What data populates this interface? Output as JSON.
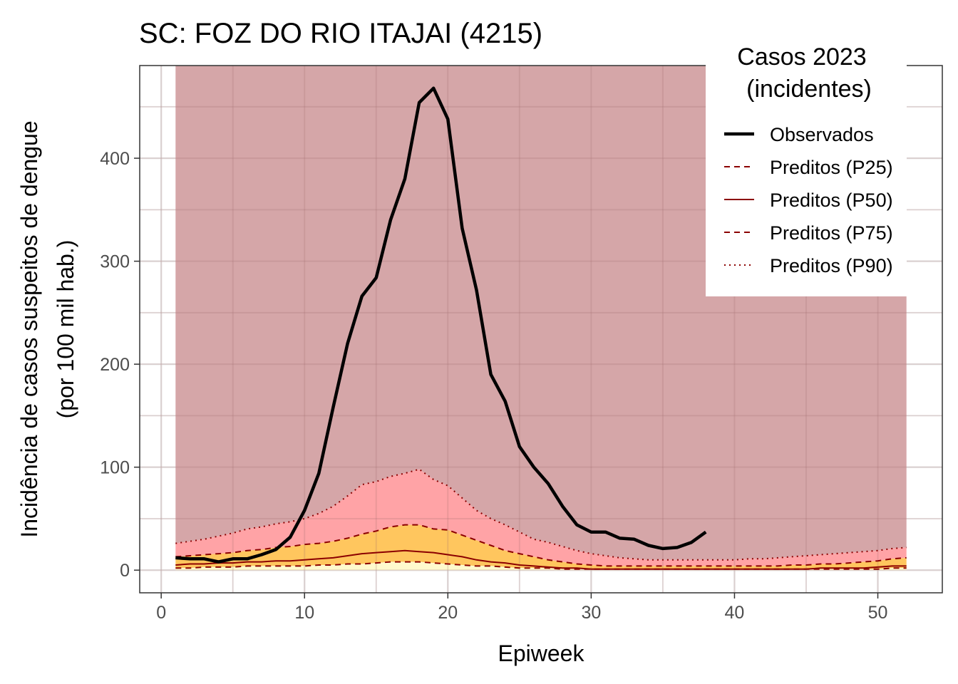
{
  "chart_data": {
    "type": "line",
    "title": "SC: FOZ DO RIO ITAJAI (4215)",
    "xlabel": "Epiweek",
    "ylabel": [
      "Incidência de casos suspeitos de dengue",
      "(por 100 mil hab.)"
    ],
    "xlim": [
      -1.5,
      54.5
    ],
    "ylim": [
      -22,
      490
    ],
    "x_ticks": [
      0,
      10,
      20,
      30,
      40,
      50
    ],
    "y_ticks": [
      0,
      100,
      200,
      300,
      400
    ],
    "grid": true,
    "legend": {
      "title": [
        "Casos 2023",
        "(incidentes)"
      ],
      "placement": "top-right",
      "entries": [
        "Observados",
        "Preditos (P25)",
        "Preditos (P50)",
        "Preditos (P75)",
        "Preditos (P90)"
      ]
    },
    "colors": {
      "band_top": "#d5a6a8",
      "band_p75_p90": "#ffa3a6",
      "band_p50_p75": "#ffc65e",
      "band_p25_p50": "#ffc65e",
      "band_0_p25": "#fffacd",
      "observed": "#000000",
      "predicted": "#8b0000"
    },
    "x_pred": [
      1,
      2,
      3,
      4,
      5,
      6,
      7,
      8,
      9,
      10,
      11,
      12,
      13,
      14,
      15,
      16,
      17,
      18,
      19,
      20,
      21,
      22,
      23,
      24,
      25,
      26,
      27,
      28,
      29,
      30,
      31,
      32,
      33,
      34,
      35,
      36,
      37,
      38,
      39,
      40,
      41,
      42,
      43,
      44,
      45,
      46,
      47,
      48,
      49,
      50,
      51,
      52
    ],
    "p25": [
      2,
      2,
      3,
      3,
      3,
      4,
      4,
      4,
      4,
      4,
      5,
      5,
      6,
      6,
      7,
      8,
      8,
      8,
      7,
      6,
      5,
      4,
      4,
      3,
      2,
      2,
      2,
      1,
      1,
      1,
      1,
      1,
      1,
      1,
      1,
      1,
      1,
      1,
      1,
      1,
      1,
      1,
      1,
      1,
      1,
      1,
      1,
      1,
      1,
      1,
      2,
      2
    ],
    "p50": [
      5,
      6,
      6,
      7,
      7,
      8,
      8,
      9,
      9,
      10,
      11,
      12,
      14,
      16,
      17,
      18,
      19,
      18,
      17,
      15,
      13,
      10,
      8,
      7,
      5,
      4,
      3,
      2,
      2,
      1,
      1,
      1,
      1,
      1,
      1,
      1,
      1,
      1,
      1,
      1,
      1,
      1,
      1,
      1,
      1,
      2,
      2,
      2,
      2,
      3,
      4,
      4
    ],
    "p75": [
      13,
      14,
      15,
      16,
      17,
      19,
      20,
      22,
      23,
      25,
      26,
      28,
      31,
      35,
      38,
      42,
      44,
      44,
      40,
      39,
      34,
      29,
      24,
      19,
      16,
      13,
      10,
      8,
      6,
      5,
      4,
      4,
      4,
      4,
      4,
      4,
      4,
      4,
      4,
      4,
      4,
      4,
      4,
      5,
      5,
      6,
      6,
      7,
      8,
      9,
      11,
      12
    ],
    "p90": [
      26,
      28,
      30,
      33,
      36,
      40,
      42,
      45,
      47,
      50,
      55,
      62,
      72,
      83,
      86,
      91,
      94,
      98,
      88,
      82,
      70,
      58,
      50,
      44,
      37,
      30,
      27,
      23,
      19,
      16,
      14,
      12,
      11,
      10,
      10,
      10,
      10,
      10,
      10,
      10,
      11,
      11,
      12,
      13,
      14,
      15,
      16,
      17,
      18,
      19,
      21,
      22
    ],
    "upper": 490,
    "x_obs": [
      1,
      2,
      3,
      4,
      5,
      6,
      7,
      8,
      9,
      10,
      11,
      12,
      13,
      14,
      15,
      16,
      17,
      18,
      19,
      20,
      21,
      22,
      23,
      24,
      25,
      26,
      27,
      28,
      29,
      30,
      31,
      32,
      33,
      34,
      35,
      36,
      37,
      38
    ],
    "observed": [
      12,
      11,
      11,
      8,
      11,
      11,
      15,
      20,
      32,
      58,
      94,
      158,
      220,
      266,
      284,
      340,
      380,
      454,
      468,
      438,
      332,
      272,
      190,
      164,
      120,
      100,
      84,
      62,
      44,
      37,
      37,
      31,
      30,
      24,
      21,
      22,
      27,
      37
    ]
  }
}
